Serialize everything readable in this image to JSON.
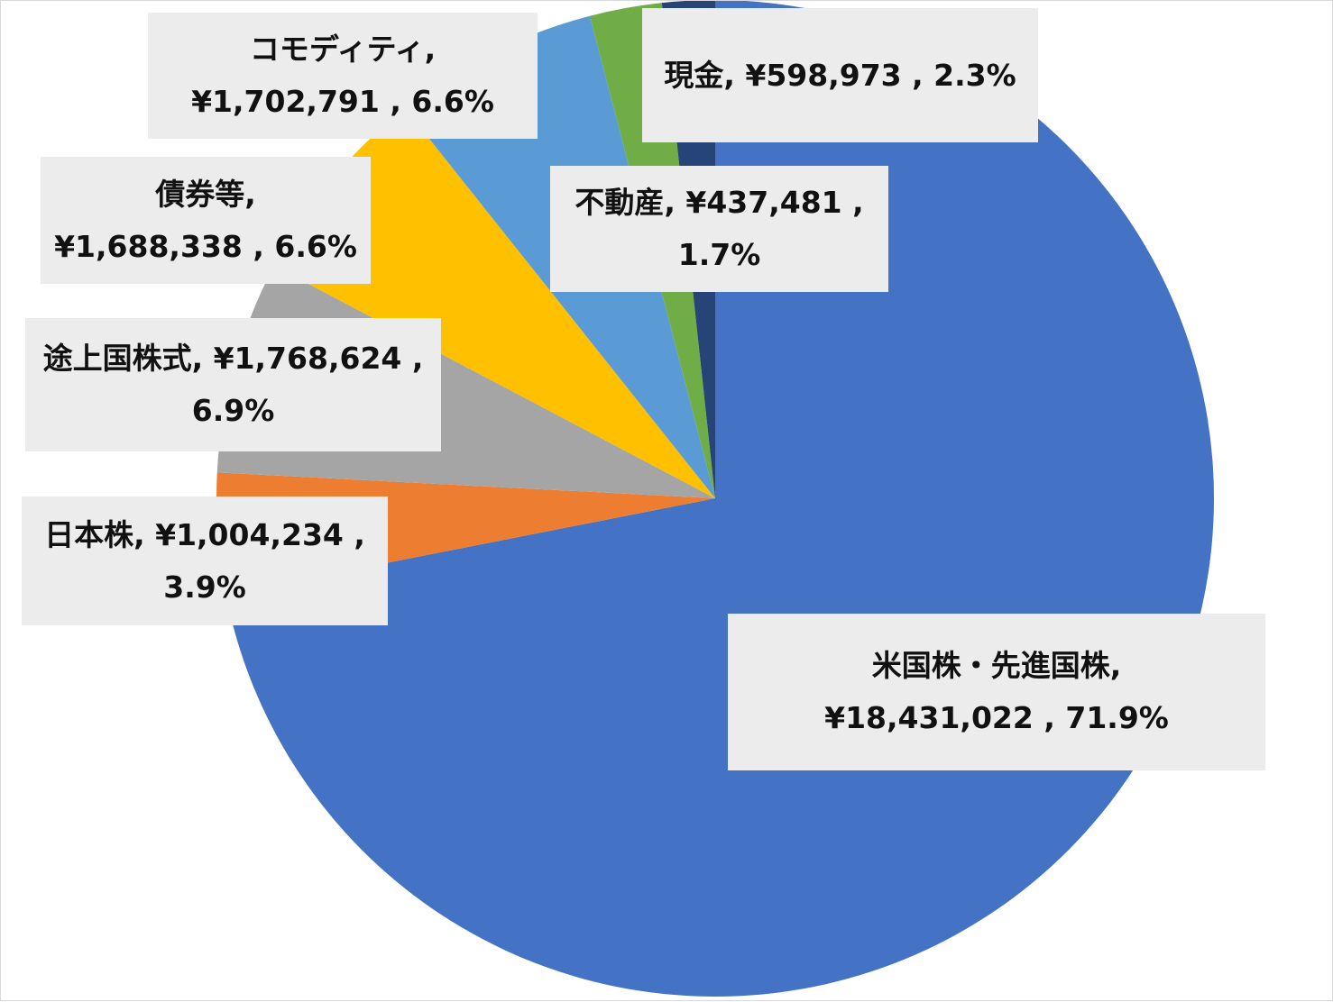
{
  "chart_data": {
    "type": "pie",
    "title": "",
    "start_angle_deg": 0,
    "direction": "clockwise",
    "slices": [
      {
        "name": "米国株・先進国株",
        "value": 18431022,
        "percent": 71.9,
        "color": "#4472c4",
        "label_line1": "米国株・先進国株,",
        "label_line2": "¥18,431,022 , 71.9%"
      },
      {
        "name": "日本株",
        "value": 1004234,
        "percent": 3.9,
        "color": "#ed7d31",
        "label_line1": "日本株, ¥1,004,234 ,",
        "label_line2": "3.9%"
      },
      {
        "name": "途上国株式",
        "value": 1768624,
        "percent": 6.9,
        "color": "#a5a5a5",
        "label_line1": "途上国株式, ¥1,768,624 ,",
        "label_line2": "6.9%"
      },
      {
        "name": "債券等",
        "value": 1688338,
        "percent": 6.6,
        "color": "#ffc000",
        "label_line1": "債券等,",
        "label_line2": "¥1,688,338 , 6.6%"
      },
      {
        "name": "コモディティ",
        "value": 1702791,
        "percent": 6.6,
        "color": "#5b9bd5",
        "label_line1": "コモディティ,",
        "label_line2": "¥1,702,791 , 6.6%"
      },
      {
        "name": "現金",
        "value": 598973,
        "percent": 2.3,
        "color": "#70ad47",
        "label_line1": "現金, ¥598,973 , 2.3%",
        "label_line2": ""
      },
      {
        "name": "不動産",
        "value": 437481,
        "percent": 1.7,
        "color": "#264478",
        "label_line1": "不動産, ¥437,481 ,",
        "label_line2": "1.7%"
      }
    ]
  }
}
